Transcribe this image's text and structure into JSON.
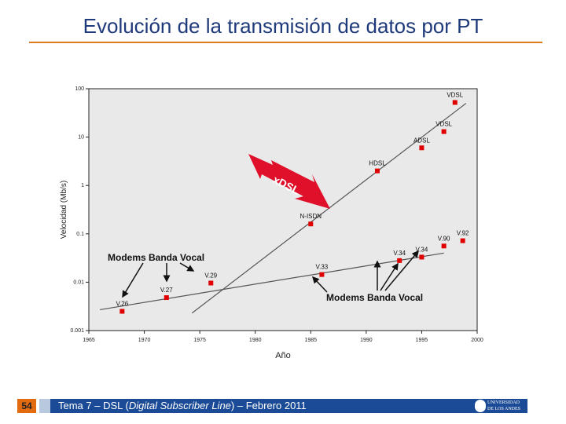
{
  "slide": {
    "title": "Evolución de la transmisión de datos por PT",
    "page_number": "54",
    "footer": {
      "pre": "Tema 7 – DSL (",
      "italic": "Digital Subscriber Line",
      "post": ") – Febrero 2011"
    },
    "logo_text": "UNIVERSIDAD DE LOS ANDES",
    "accent": "#e07a1a",
    "footer_color": "#1b4b96"
  },
  "chart_data": {
    "type": "scatter",
    "title": "",
    "xlabel": "Año",
    "ylabel": "Velocidad (Mb/s)",
    "xlim": [
      1965,
      2000
    ],
    "ylim": [
      0.001,
      100
    ],
    "yscale": "log",
    "xticks": [
      "1965",
      "1970",
      "1975",
      "1980",
      "1985",
      "1990",
      "1995",
      "2000"
    ],
    "yticks": [
      "0.001",
      "0.01",
      "0.1",
      "1",
      "10",
      "100"
    ],
    "grid": false,
    "background": "#e9e9e9",
    "marker_color": "#e00000",
    "points": [
      {
        "label": "V.26",
        "x": 1968,
        "y": 0.0025
      },
      {
        "label": "V.27",
        "x": 1972,
        "y": 0.0048
      },
      {
        "label": "V.29",
        "x": 1976,
        "y": 0.0096
      },
      {
        "label": "N-ISDN",
        "x": 1985,
        "y": 0.16
      },
      {
        "label": "V.33",
        "x": 1986,
        "y": 0.0144
      },
      {
        "label": "HDSL",
        "x": 1991,
        "y": 2
      },
      {
        "label": "V.34",
        "x": 1993,
        "y": 0.028
      },
      {
        "label": "ADSL",
        "x": 1995,
        "y": 6
      },
      {
        "label": "V.34",
        "x": 1995,
        "y": 0.033
      },
      {
        "label": "VDSL",
        "x": 1997,
        "y": 13
      },
      {
        "label": "V.90",
        "x": 1997,
        "y": 0.056
      },
      {
        "label": "VDSL",
        "x": 1998,
        "y": 52
      },
      {
        "label": "V.92",
        "x": 1998.7,
        "y": 0.072
      }
    ],
    "trend_lines": [
      {
        "from": [
          1974.3,
          0.0023
        ],
        "to": [
          1999,
          50
        ]
      },
      {
        "from": [
          1966,
          0.0027
        ],
        "to": [
          1997,
          0.04
        ]
      }
    ],
    "annotations": {
      "xdsl": "xDSL",
      "modems_left": "Modems Banda Vocal",
      "modems_right": "Modems Banda Vocal"
    }
  }
}
